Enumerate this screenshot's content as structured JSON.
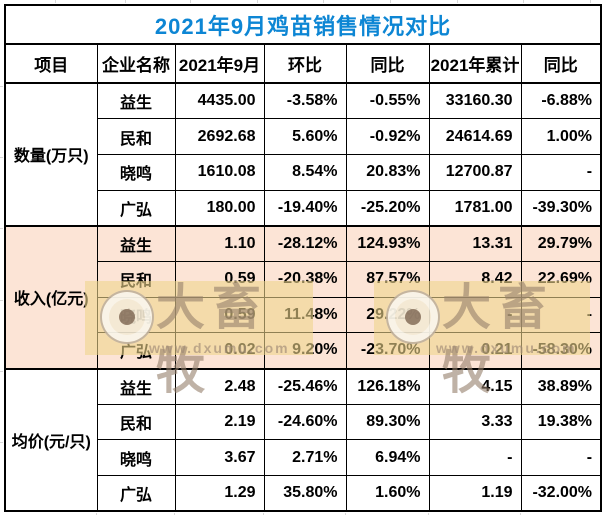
{
  "title": "2021年9月鸡苗销售情况对比",
  "colors": {
    "title-blue": "#0d86d4",
    "value-blue": "#3d6fd0",
    "value-red": "#fe0000",
    "value-green": "#00b050",
    "highlight-bg": "#fce4d6",
    "border-black": "#000000",
    "sheet-grid": "#d8d8d8",
    "wm-box": "rgba(238,214,140,0.6)",
    "wm-ink": "rgba(148,126,106,0.6)",
    "wm-url": "rgba(160,138,118,0.65)",
    "wm-ring": "rgba(244,238,226,0.75)",
    "wm-ring-border": "rgba(150,128,108,0.5)",
    "wm-dot": "rgba(118,92,72,0.75)"
  },
  "table": {
    "columns": [
      "项目",
      "企业名称",
      "2021年9月",
      "环比",
      "同比",
      "2021年累计",
      "同比"
    ],
    "groups": [
      {
        "label": "数量(万只)",
        "highlight": false,
        "rows": [
          {
            "company": "益生",
            "cells": [
              [
                "4435.00",
                "blue"
              ],
              [
                "-3.58%",
                "green"
              ],
              [
                "-0.55%",
                "green"
              ],
              [
                "33160.30",
                "blue"
              ],
              [
                "-6.88%",
                "green"
              ]
            ]
          },
          {
            "company": "民和",
            "cells": [
              [
                "2692.68",
                "blue"
              ],
              [
                "5.60%",
                "red"
              ],
              [
                "-0.92%",
                "green"
              ],
              [
                "24614.69",
                "blue"
              ],
              [
                "1.00%",
                "red"
              ]
            ]
          },
          {
            "company": "晓鸣",
            "cells": [
              [
                "1610.08",
                "blue"
              ],
              [
                "8.54%",
                "red"
              ],
              [
                "20.83%",
                "red"
              ],
              [
                "12700.87",
                "blue"
              ],
              [
                "-",
                "red"
              ]
            ]
          },
          {
            "company": "广弘",
            "cells": [
              [
                "180.00",
                "blue"
              ],
              [
                "-19.40%",
                "green"
              ],
              [
                "-25.20%",
                "green"
              ],
              [
                "1781.00",
                "blue"
              ],
              [
                "-39.30%",
                "green"
              ]
            ]
          }
        ]
      },
      {
        "label": "收入(亿元)",
        "highlight": true,
        "rows": [
          {
            "company": "益生",
            "cells": [
              [
                "1.10",
                "blue"
              ],
              [
                "-28.12%",
                "green"
              ],
              [
                "124.93%",
                "red"
              ],
              [
                "13.31",
                "blue"
              ],
              [
                "29.79%",
                "red"
              ]
            ]
          },
          {
            "company": "民和",
            "cells": [
              [
                "0.59",
                "blue"
              ],
              [
                "-20.38%",
                "green"
              ],
              [
                "87.57%",
                "red"
              ],
              [
                "8.42",
                "blue"
              ],
              [
                "22.69%",
                "red"
              ]
            ]
          },
          {
            "company": "晓鸣",
            "cells": [
              [
                "0.59",
                "blue"
              ],
              [
                "11.48%",
                "red"
              ],
              [
                "29.22%",
                "red"
              ],
              [
                "-",
                "blue"
              ],
              [
                "-",
                "red"
              ]
            ]
          },
          {
            "company": "广弘",
            "cells": [
              [
                "0.02",
                "blue"
              ],
              [
                "9.20%",
                "red"
              ],
              [
                "-23.70%",
                "green"
              ],
              [
                "0.21",
                "blue"
              ],
              [
                "-58.30%",
                "green"
              ]
            ]
          }
        ]
      },
      {
        "label": "均价(元/只)",
        "highlight": false,
        "rows": [
          {
            "company": "益生",
            "cells": [
              [
                "2.48",
                "blue"
              ],
              [
                "-25.46%",
                "green"
              ],
              [
                "126.18%",
                "red"
              ],
              [
                "4.15",
                "blue"
              ],
              [
                "38.89%",
                "red"
              ]
            ]
          },
          {
            "company": "民和",
            "cells": [
              [
                "2.19",
                "blue"
              ],
              [
                "-24.60%",
                "green"
              ],
              [
                "89.30%",
                "red"
              ],
              [
                "3.33",
                "blue"
              ],
              [
                "19.38%",
                "red"
              ]
            ]
          },
          {
            "company": "晓鸣",
            "cells": [
              [
                "3.67",
                "blue"
              ],
              [
                "2.71%",
                "red"
              ],
              [
                "6.94%",
                "red"
              ],
              [
                "-",
                "blue"
              ],
              [
                "-",
                "red"
              ]
            ]
          },
          {
            "company": "广弘",
            "cells": [
              [
                "1.29",
                "blue"
              ],
              [
                "35.80%",
                "red"
              ],
              [
                "1.60%",
                "red"
              ],
              [
                "1.19",
                "blue"
              ],
              [
                "-32.00%",
                "green"
              ]
            ]
          }
        ]
      }
    ]
  },
  "watermark": {
    "brand": "大畜牧",
    "url": "www.dxumu.com"
  },
  "chart_data": {
    "type": "table",
    "title": "2021年9月鸡苗销售情况对比",
    "columns": [
      "项目",
      "企业名称",
      "2021年9月",
      "环比",
      "同比",
      "2021年累计",
      "同比"
    ],
    "rows": [
      [
        "数量(万只)",
        "益生",
        4435.0,
        "-3.58%",
        "-0.55%",
        33160.3,
        "-6.88%"
      ],
      [
        "数量(万只)",
        "民和",
        2692.68,
        "5.60%",
        "-0.92%",
        24614.69,
        "1.00%"
      ],
      [
        "数量(万只)",
        "晓鸣",
        1610.08,
        "8.54%",
        "20.83%",
        12700.87,
        "-"
      ],
      [
        "数量(万只)",
        "广弘",
        180.0,
        "-19.40%",
        "-25.20%",
        1781.0,
        "-39.30%"
      ],
      [
        "收入(亿元)",
        "益生",
        1.1,
        "-28.12%",
        "124.93%",
        13.31,
        "29.79%"
      ],
      [
        "收入(亿元)",
        "民和",
        0.59,
        "-20.38%",
        "87.57%",
        8.42,
        "22.69%"
      ],
      [
        "收入(亿元)",
        "晓鸣",
        0.59,
        "11.48%",
        "29.22%",
        "-",
        "-"
      ],
      [
        "收入(亿元)",
        "广弘",
        0.02,
        "9.20%",
        "-23.70%",
        0.21,
        "-58.30%"
      ],
      [
        "均价(元/只)",
        "益生",
        2.48,
        "-25.46%",
        "126.18%",
        4.15,
        "38.89%"
      ],
      [
        "均价(元/只)",
        "民和",
        2.19,
        "-24.60%",
        "89.30%",
        3.33,
        "19.38%"
      ],
      [
        "均价(元/只)",
        "晓鸣",
        3.67,
        "2.71%",
        "6.94%",
        "-",
        "-"
      ],
      [
        "均价(元/只)",
        "广弘",
        1.29,
        "35.80%",
        "1.60%",
        1.19,
        "-32.00%"
      ]
    ]
  }
}
